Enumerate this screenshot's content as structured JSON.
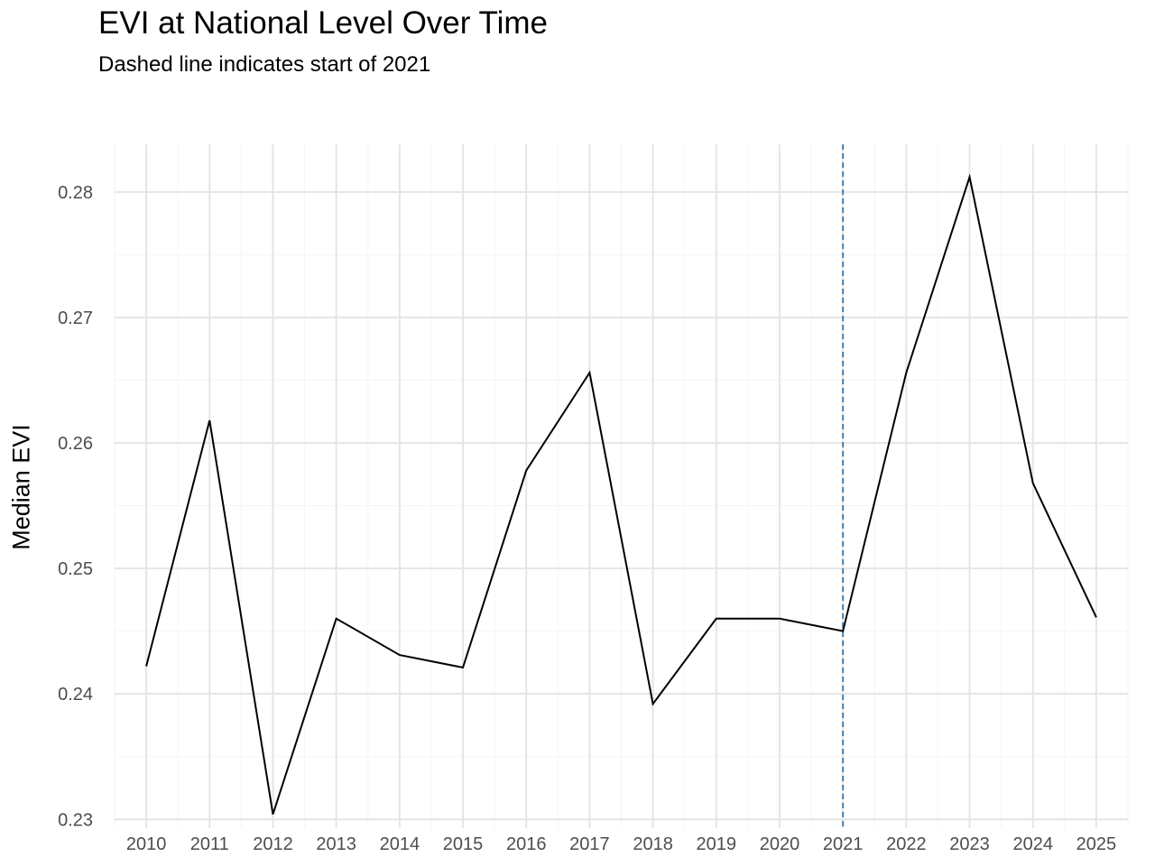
{
  "chart_data": {
    "type": "line",
    "title": "EVI at National Level Over Time",
    "subtitle": "Dashed line indicates start of 2021",
    "xlabel": "",
    "ylabel": "Median EVI",
    "x": [
      2010,
      2011,
      2012,
      2013,
      2014,
      2015,
      2016,
      2017,
      2018,
      2019,
      2020,
      2021,
      2022,
      2023,
      2024,
      2025
    ],
    "series": [
      {
        "values": [
          0.2422,
          0.2618,
          0.2304,
          0.246,
          0.2431,
          0.2421,
          0.2578,
          0.2656,
          0.2392,
          0.246,
          0.246,
          0.245,
          0.2656,
          0.2812,
          0.2568,
          0.2461
        ]
      }
    ],
    "x_ticks": [
      "2010",
      "2011",
      "2012",
      "2013",
      "2014",
      "2015",
      "2016",
      "2017",
      "2018",
      "2019",
      "2020",
      "2021",
      "2022",
      "2023",
      "2024",
      "2025"
    ],
    "y_ticks": [
      "0.23",
      "0.24",
      "0.25",
      "0.26",
      "0.27",
      "0.28"
    ],
    "xlim": [
      2009.5,
      2025.5
    ],
    "ylim": [
      0.2293,
      0.2838
    ],
    "reference_line": {
      "x": 2021,
      "style": "dashed",
      "color": "#4682b4"
    },
    "grid": true,
    "legend": "none",
    "line_color": "#000000",
    "grid_major_color": "#e5e5e5",
    "grid_minor_color": "#f5f5f5",
    "tick_label_color": "#4d4d4d"
  }
}
